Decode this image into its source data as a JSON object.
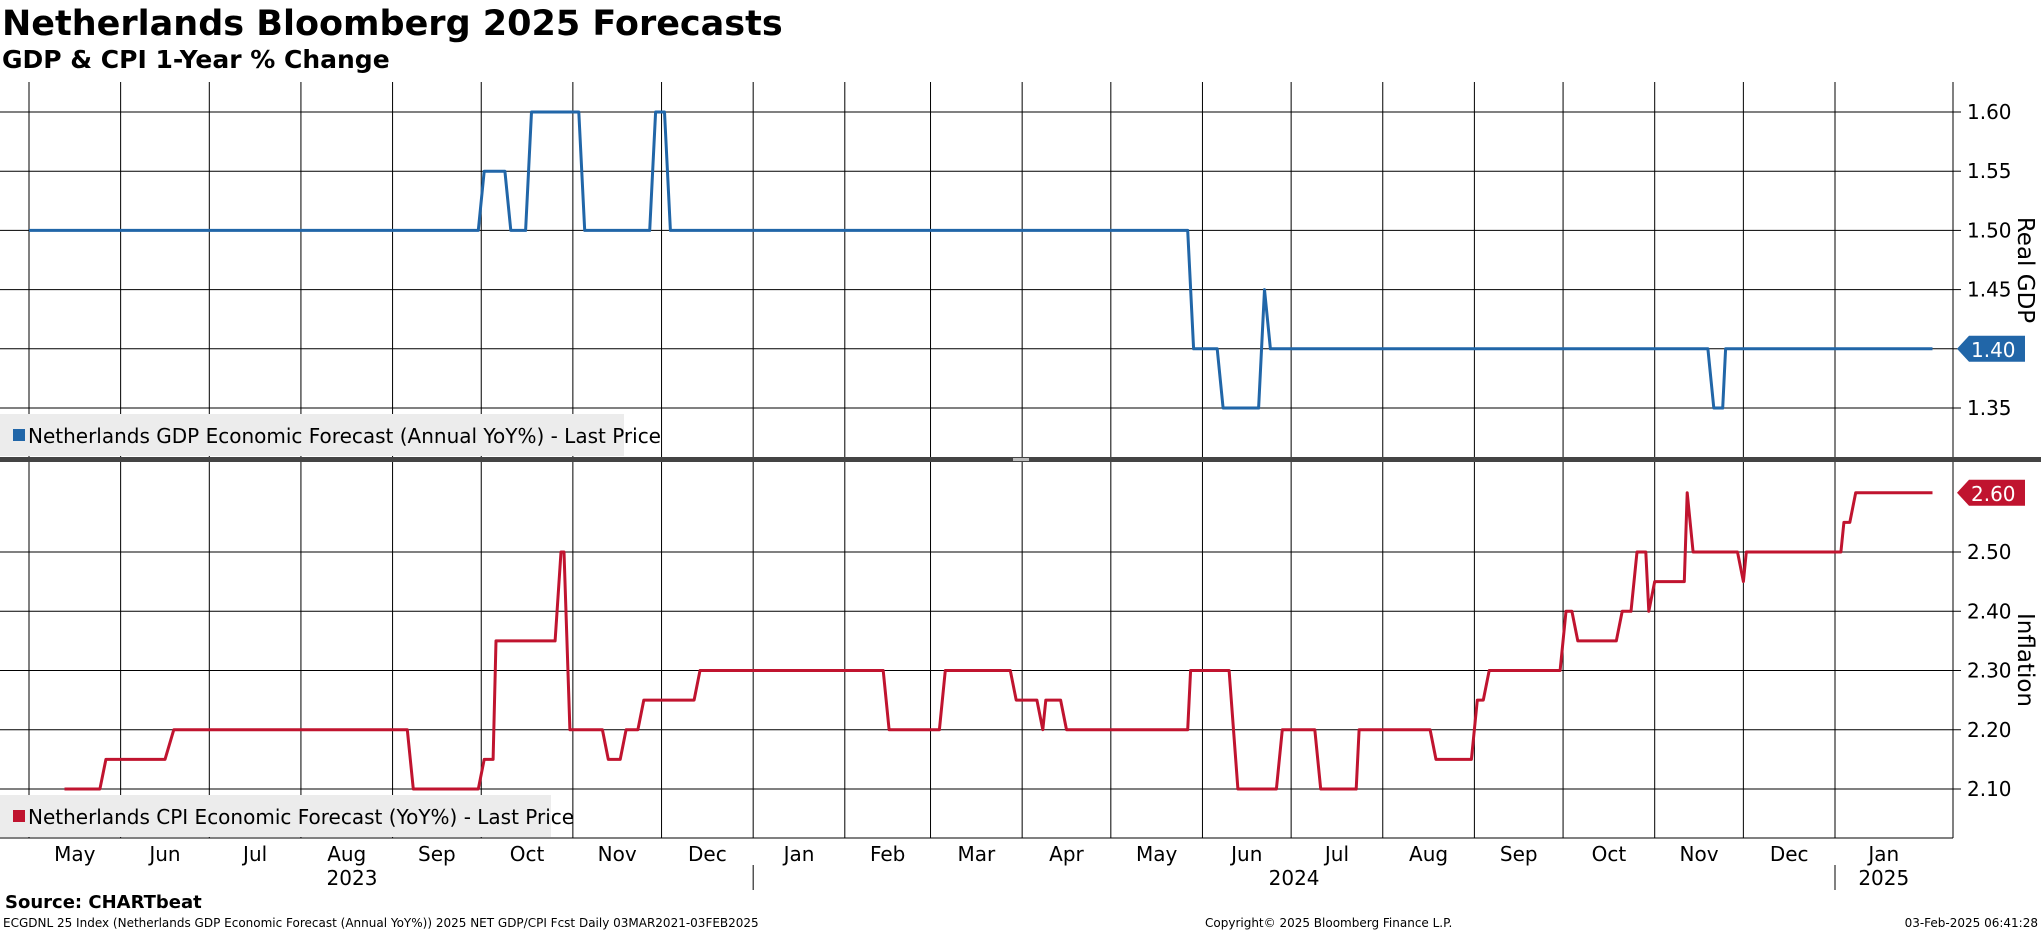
{
  "header": {
    "title": "Netherlands Bloomberg 2025 Forecasts",
    "subtitle": "GDP & CPI 1-Year % Change"
  },
  "footer": {
    "source": "Source: CHARTbeat",
    "left": "ECGDNL 25 Index (Netherlands GDP Economic Forecast (Annual YoY%)) 2025 NET GDP/CPI Fcst  Daily 03MAR2021-03FEB2025",
    "center": "Copyright© 2025 Bloomberg Finance L.P.",
    "right": "03-Feb-2025 06:41:28"
  },
  "colors": {
    "gdp": "#2166a8",
    "cpi": "#c0142f",
    "grid": "#000000",
    "legend_bg": "#ececec",
    "divider": "#444444"
  },
  "chart_data": [
    {
      "type": "line",
      "ylabel": "Real GDP",
      "ylim": [
        1.3,
        1.63
      ],
      "yticks": [
        "1.60",
        "1.55",
        "1.50",
        "1.45",
        "1.40",
        "1.35"
      ],
      "legend": "Netherlands GDP Economic Forecast (Annual YoY%) - Last Price",
      "legend_position": "bottom-left",
      "last_value_label": "1.40",
      "grid": true,
      "series": [
        {
          "name": "Netherlands GDP Economic Forecast (Annual YoY%) - Last Price",
          "points": [
            [
              "2023-05-01",
              1.5
            ],
            [
              "2023-09-30",
              1.5
            ],
            [
              "2023-10-02",
              1.55
            ],
            [
              "2023-10-09",
              1.55
            ],
            [
              "2023-10-11",
              1.5
            ],
            [
              "2023-10-16",
              1.5
            ],
            [
              "2023-10-18",
              1.6
            ],
            [
              "2023-11-03",
              1.6
            ],
            [
              "2023-11-05",
              1.5
            ],
            [
              "2023-11-27",
              1.5
            ],
            [
              "2023-11-29",
              1.6
            ],
            [
              "2023-12-02",
              1.6
            ],
            [
              "2023-12-04",
              1.5
            ],
            [
              "2024-05-27",
              1.5
            ],
            [
              "2024-05-29",
              1.4
            ],
            [
              "2024-06-06",
              1.4
            ],
            [
              "2024-06-08",
              1.35
            ],
            [
              "2024-06-20",
              1.35
            ],
            [
              "2024-06-22",
              1.45
            ],
            [
              "2024-06-24",
              1.4
            ],
            [
              "2024-11-19",
              1.4
            ],
            [
              "2024-11-21",
              1.35
            ],
            [
              "2024-11-24",
              1.35
            ],
            [
              "2024-11-25",
              1.4
            ],
            [
              "2025-02-03",
              1.4
            ]
          ]
        }
      ]
    },
    {
      "type": "line",
      "ylabel": "Inflation",
      "ylim": [
        2.04,
        2.64
      ],
      "yticks": [
        "2.50",
        "2.40",
        "2.30",
        "2.20",
        "2.10"
      ],
      "legend": "Netherlands CPI Economic Forecast (YoY%) - Last Price",
      "legend_position": "bottom-left",
      "last_value_label": "2.60",
      "grid": true,
      "series": [
        {
          "name": "Netherlands CPI Economic Forecast (YoY%) - Last Price",
          "points": [
            [
              "2023-05-13",
              2.1
            ],
            [
              "2023-05-25",
              2.1
            ],
            [
              "2023-05-27",
              2.15
            ],
            [
              "2023-06-16",
              2.15
            ],
            [
              "2023-06-19",
              2.2
            ],
            [
              "2023-09-06",
              2.2
            ],
            [
              "2023-09-08",
              2.1
            ],
            [
              "2023-09-30",
              2.1
            ],
            [
              "2023-10-02",
              2.15
            ],
            [
              "2023-10-05",
              2.15
            ],
            [
              "2023-10-06",
              2.35
            ],
            [
              "2023-10-26",
              2.35
            ],
            [
              "2023-10-28",
              2.5
            ],
            [
              "2023-10-29",
              2.5
            ],
            [
              "2023-10-31",
              2.2
            ],
            [
              "2023-11-11",
              2.2
            ],
            [
              "2023-11-13",
              2.15
            ],
            [
              "2023-11-17",
              2.15
            ],
            [
              "2023-11-19",
              2.2
            ],
            [
              "2023-11-23",
              2.2
            ],
            [
              "2023-11-25",
              2.25
            ],
            [
              "2023-12-12",
              2.25
            ],
            [
              "2023-12-14",
              2.3
            ],
            [
              "2024-02-14",
              2.3
            ],
            [
              "2024-02-16",
              2.2
            ],
            [
              "2024-03-04",
              2.2
            ],
            [
              "2024-03-06",
              2.3
            ],
            [
              "2024-03-28",
              2.3
            ],
            [
              "2024-03-30",
              2.25
            ],
            [
              "2024-04-06",
              2.25
            ],
            [
              "2024-04-08",
              2.2
            ],
            [
              "2024-04-09",
              2.25
            ],
            [
              "2024-04-14",
              2.25
            ],
            [
              "2024-04-16",
              2.2
            ],
            [
              "2024-05-27",
              2.2
            ],
            [
              "2024-05-28",
              2.3
            ],
            [
              "2024-06-10",
              2.3
            ],
            [
              "2024-06-13",
              2.1
            ],
            [
              "2024-06-26",
              2.1
            ],
            [
              "2024-06-28",
              2.2
            ],
            [
              "2024-07-09",
              2.2
            ],
            [
              "2024-07-11",
              2.1
            ],
            [
              "2024-07-23",
              2.1
            ],
            [
              "2024-07-24",
              2.2
            ],
            [
              "2024-08-17",
              2.2
            ],
            [
              "2024-08-19",
              2.15
            ],
            [
              "2024-08-31",
              2.15
            ],
            [
              "2024-09-02",
              2.25
            ],
            [
              "2024-09-04",
              2.25
            ],
            [
              "2024-09-06",
              2.3
            ],
            [
              "2024-09-30",
              2.3
            ],
            [
              "2024-10-02",
              2.4
            ],
            [
              "2024-10-04",
              2.4
            ],
            [
              "2024-10-06",
              2.35
            ],
            [
              "2024-10-19",
              2.35
            ],
            [
              "2024-10-21",
              2.4
            ],
            [
              "2024-10-24",
              2.4
            ],
            [
              "2024-10-26",
              2.5
            ],
            [
              "2024-10-29",
              2.5
            ],
            [
              "2024-10-30",
              2.4
            ],
            [
              "2024-11-01",
              2.45
            ],
            [
              "2024-11-11",
              2.45
            ],
            [
              "2024-11-12",
              2.6
            ],
            [
              "2024-11-14",
              2.5
            ],
            [
              "2024-11-29",
              2.5
            ],
            [
              "2024-12-01",
              2.45
            ],
            [
              "2024-12-02",
              2.5
            ],
            [
              "2025-01-03",
              2.5
            ],
            [
              "2025-01-04",
              2.55
            ],
            [
              "2025-01-06",
              2.55
            ],
            [
              "2025-01-08",
              2.6
            ],
            [
              "2025-02-03",
              2.6
            ]
          ]
        }
      ]
    }
  ],
  "x_axis": {
    "range": [
      "2023-05-01",
      "2025-02-03"
    ],
    "months": [
      {
        "label": "May",
        "date": "2023-05-01"
      },
      {
        "label": "Jun",
        "date": "2023-06-01"
      },
      {
        "label": "Jul",
        "date": "2023-07-01"
      },
      {
        "label": "Aug",
        "date": "2023-08-01"
      },
      {
        "label": "Sep",
        "date": "2023-09-01"
      },
      {
        "label": "Oct",
        "date": "2023-10-01"
      },
      {
        "label": "Nov",
        "date": "2023-11-01"
      },
      {
        "label": "Dec",
        "date": "2023-12-01"
      },
      {
        "label": "Jan",
        "date": "2024-01-01"
      },
      {
        "label": "Feb",
        "date": "2024-02-01"
      },
      {
        "label": "Mar",
        "date": "2024-03-01"
      },
      {
        "label": "Apr",
        "date": "2024-04-01"
      },
      {
        "label": "May",
        "date": "2024-05-01"
      },
      {
        "label": "Jun",
        "date": "2024-06-01"
      },
      {
        "label": "Jul",
        "date": "2024-07-01"
      },
      {
        "label": "Aug",
        "date": "2024-08-01"
      },
      {
        "label": "Sep",
        "date": "2024-09-01"
      },
      {
        "label": "Oct",
        "date": "2024-10-01"
      },
      {
        "label": "Nov",
        "date": "2024-11-01"
      },
      {
        "label": "Dec",
        "date": "2024-12-01"
      },
      {
        "label": "Jan",
        "date": "2025-01-01"
      }
    ],
    "years": [
      {
        "label": "2023",
        "from": "2023-05-01",
        "to": "2024-01-01"
      },
      {
        "label": "2024",
        "from": "2024-01-01",
        "to": "2025-01-01"
      },
      {
        "label": "2025",
        "from": "2025-01-01",
        "to": "2025-02-03"
      }
    ]
  }
}
